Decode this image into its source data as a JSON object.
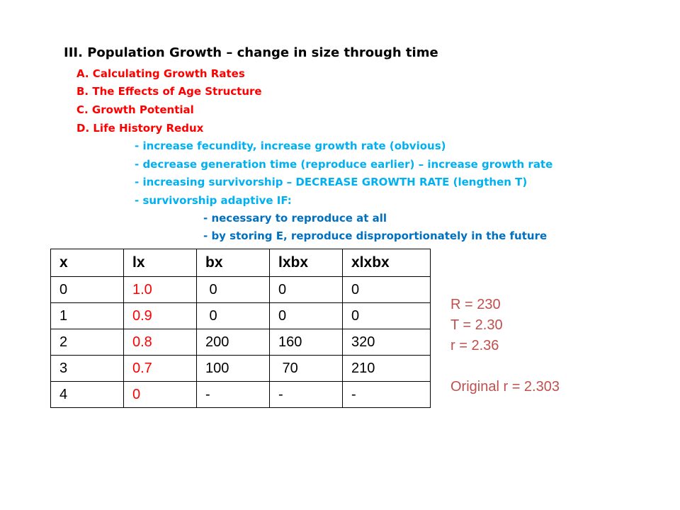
{
  "outline": {
    "heading": "III. Population Growth – change in size through time",
    "sections": [
      "A. Calculating Growth Rates",
      "B. The Effects of Age Structure",
      "C. Growth Potential",
      "D. Life History Redux"
    ],
    "points": [
      "- increase fecundity, increase growth rate (obvious)",
      "- decrease generation time (reproduce earlier) – increase growth rate",
      "- increasing survivorship – DECREASE GROWTH RATE (lengthen T)",
      "- survivorship adaptive IF:"
    ],
    "subpoints": [
      "- necessary to reproduce at all",
      "- by storing E, reproduce disproportionately  in the future"
    ]
  },
  "table": {
    "headers": [
      "x",
      "lx",
      "bx",
      "lxbx",
      "xlxbx"
    ],
    "rows": [
      [
        "0",
        "1.0",
        " 0",
        "0",
        "0"
      ],
      [
        "1",
        "0.9",
        " 0",
        "0",
        "0"
      ],
      [
        "2",
        "0.8",
        "200",
        "160",
        "320"
      ],
      [
        "3",
        "0.7",
        "100",
        " 70",
        "210"
      ],
      [
        "4",
        "0",
        "-",
        "-",
        "-"
      ]
    ]
  },
  "stats": {
    "R": "R = 230",
    "T": "T = 2.30",
    "r": "r = 2.36",
    "original": "Original r = 2.303"
  },
  "colors": {
    "heading": "#000000",
    "sections": "#ff0000",
    "points": "#00b0f0",
    "subpoints": "#0070c0",
    "lx_column": "#ff0000",
    "stats": "#c0504d"
  }
}
